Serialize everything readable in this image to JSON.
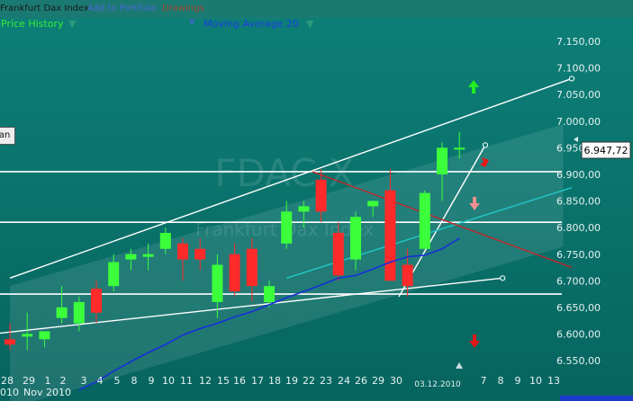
{
  "toolbar": {
    "title": "Frankfurt Dax Index",
    "add_to_portfolio": "Add to Portfolio",
    "drawings": "Drawings"
  },
  "studies": {
    "price_history": "Price History",
    "moving_average": "Moving Average 20"
  },
  "watermark": {
    "symbol": "FDAC X",
    "name": "Frankfurt Dax Index"
  },
  "side_button": "Fan",
  "current_price": "6.947,72",
  "date_marker": "03.12.2010",
  "colors": {
    "background": "#0b7a74",
    "up_candle": "#3cff3c",
    "down_candle": "#ff2a2a",
    "moving_average": "#1530d8",
    "axis_text": "#e6f2f2",
    "title_text": "#1a1a1a",
    "link_text": "#3c58d0",
    "drawings_text": "#a04a2e",
    "studies_text": "#35ee35"
  },
  "chart_data": {
    "type": "candlestick",
    "y_axis_labels": [
      "7.150,00",
      "7.100,00",
      "7.050,00",
      "7.000,00",
      "6.950,00",
      "6.900,00",
      "6.850,00",
      "6.800,00",
      "6.750,00",
      "6.700,00",
      "6.650,00",
      "6.600,00",
      "6.550,00"
    ],
    "ylim": [
      6520,
      7175
    ],
    "x_tick_labels": [
      "28",
      "29",
      "1",
      "2",
      "3",
      "4",
      "5",
      "8",
      "9",
      "10",
      "11",
      "12",
      "15",
      "16",
      "17",
      "18",
      "19",
      "22",
      "23",
      "24",
      "26",
      "29",
      "30",
      "7",
      "8",
      "9",
      "10",
      "13"
    ],
    "x_month_labels": [
      "010",
      "Nov 2010"
    ],
    "candles": [
      {
        "o": 6590,
        "h": 6620,
        "l": 6570,
        "c": 6580
      },
      {
        "o": 6595,
        "h": 6640,
        "l": 6570,
        "c": 6600
      },
      {
        "o": 6590,
        "h": 6605,
        "l": 6575,
        "c": 6605
      },
      {
        "o": 6630,
        "h": 6690,
        "l": 6620,
        "c": 6650
      },
      {
        "o": 6620,
        "h": 6670,
        "l": 6605,
        "c": 6660
      },
      {
        "o": 6685,
        "h": 6700,
        "l": 6620,
        "c": 6640
      },
      {
        "o": 6690,
        "h": 6750,
        "l": 6680,
        "c": 6735
      },
      {
        "o": 6740,
        "h": 6760,
        "l": 6720,
        "c": 6750
      },
      {
        "o": 6745,
        "h": 6770,
        "l": 6720,
        "c": 6750
      },
      {
        "o": 6760,
        "h": 6800,
        "l": 6750,
        "c": 6790
      },
      {
        "o": 6770,
        "h": 6780,
        "l": 6700,
        "c": 6740
      },
      {
        "o": 6760,
        "h": 6780,
        "l": 6720,
        "c": 6740
      },
      {
        "o": 6660,
        "h": 6750,
        "l": 6630,
        "c": 6730
      },
      {
        "o": 6750,
        "h": 6770,
        "l": 6670,
        "c": 6680
      },
      {
        "o": 6760,
        "h": 6780,
        "l": 6660,
        "c": 6690
      },
      {
        "o": 6660,
        "h": 6700,
        "l": 6650,
        "c": 6690
      },
      {
        "o": 6770,
        "h": 6850,
        "l": 6760,
        "c": 6830
      },
      {
        "o": 6830,
        "h": 6850,
        "l": 6800,
        "c": 6840
      },
      {
        "o": 6890,
        "h": 6910,
        "l": 6810,
        "c": 6830
      },
      {
        "o": 6790,
        "h": 6810,
        "l": 6700,
        "c": 6710
      },
      {
        "o": 6740,
        "h": 6830,
        "l": 6720,
        "c": 6820
      },
      {
        "o": 6840,
        "h": 6850,
        "l": 6820,
        "c": 6850
      },
      {
        "o": 6870,
        "h": 6910,
        "l": 6700,
        "c": 6700
      },
      {
        "o": 6730,
        "h": 6760,
        "l": 6670,
        "c": 6690
      },
      {
        "o": 6760,
        "h": 6870,
        "l": 6760,
        "c": 6865
      },
      {
        "o": 6900,
        "h": 6960,
        "l": 6850,
        "c": 6950
      },
      {
        "o": 6950,
        "h": 6980,
        "l": 6930,
        "c": 6950
      }
    ],
    "moving_average_20": [
      6495,
      6510,
      6530,
      6548,
      6565,
      6580,
      6598,
      6610,
      6620,
      6632,
      6642,
      6655,
      6668,
      6680,
      6692,
      6705,
      6710,
      6722,
      6735,
      6745,
      6748,
      6760,
      6780
    ],
    "horizontal_lines": [
      6905,
      6810,
      6675
    ],
    "trend_lines": [
      {
        "color": "#ffffff",
        "from": [
          0,
          6705
        ],
        "to": [
          32.5,
          7080
        ],
        "end_marker": true
      },
      {
        "color": "#ffffff",
        "from": [
          -1,
          6600
        ],
        "to": [
          28.5,
          6705
        ],
        "end_marker": true
      },
      {
        "color": "#ffffff",
        "from": [
          22.5,
          6670
        ],
        "to": [
          27.5,
          6955
        ],
        "end_marker": true
      },
      {
        "color": "#20c8c8",
        "from": [
          16,
          6705
        ],
        "to": [
          32.5,
          6875
        ],
        "end_marker": false
      },
      {
        "color": "#c0282a",
        "from": [
          17.5,
          6905
        ],
        "to": [
          32.5,
          6725
        ],
        "end_marker": false
      }
    ],
    "grid": false,
    "legend": "none"
  }
}
